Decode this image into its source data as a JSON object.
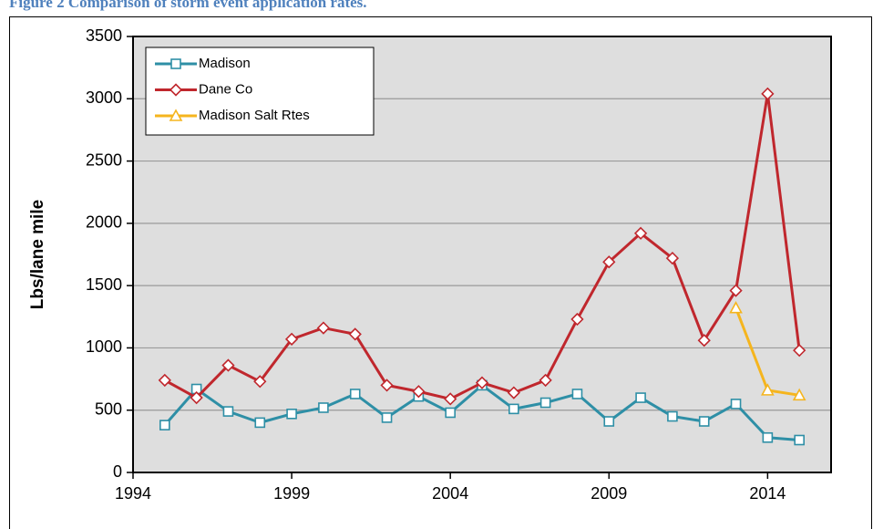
{
  "caption": "Figure 2 Comparison of storm event application rates.",
  "chart_data": {
    "type": "line",
    "y_label": "Lbs/lane mile",
    "x": [
      1995,
      1996,
      1997,
      1998,
      1999,
      2000,
      2001,
      2002,
      2003,
      2004,
      2005,
      2006,
      2007,
      2008,
      2009,
      2010,
      2011,
      2012,
      2013,
      2014,
      2015
    ],
    "series": [
      {
        "name": "Madison",
        "color": "#2e8fa6",
        "marker": "square",
        "values": [
          380,
          670,
          490,
          400,
          470,
          520,
          630,
          440,
          610,
          480,
          700,
          510,
          560,
          630,
          410,
          600,
          450,
          410,
          550,
          280,
          260
        ]
      },
      {
        "name": "Dane Co",
        "color": "#c0272d",
        "marker": "diamond",
        "values": [
          740,
          600,
          860,
          730,
          1070,
          1160,
          1110,
          700,
          650,
          590,
          720,
          640,
          740,
          1230,
          1690,
          1920,
          1720,
          1060,
          1460,
          3040,
          980
        ]
      },
      {
        "name": "Madison Salt Rtes",
        "color": "#f5b51e",
        "marker": "triangle",
        "values": [
          null,
          null,
          null,
          null,
          null,
          null,
          null,
          null,
          null,
          null,
          null,
          null,
          null,
          null,
          null,
          null,
          null,
          null,
          1320,
          660,
          620
        ]
      }
    ],
    "xlim": [
      1994,
      2016
    ],
    "xticks": [
      1994,
      1999,
      2004,
      2009,
      2014
    ],
    "ylim": [
      0,
      3500
    ],
    "yticks": [
      0,
      500,
      1000,
      1500,
      2000,
      2500,
      3000,
      3500
    ],
    "grid": true,
    "legend": "top-left"
  }
}
